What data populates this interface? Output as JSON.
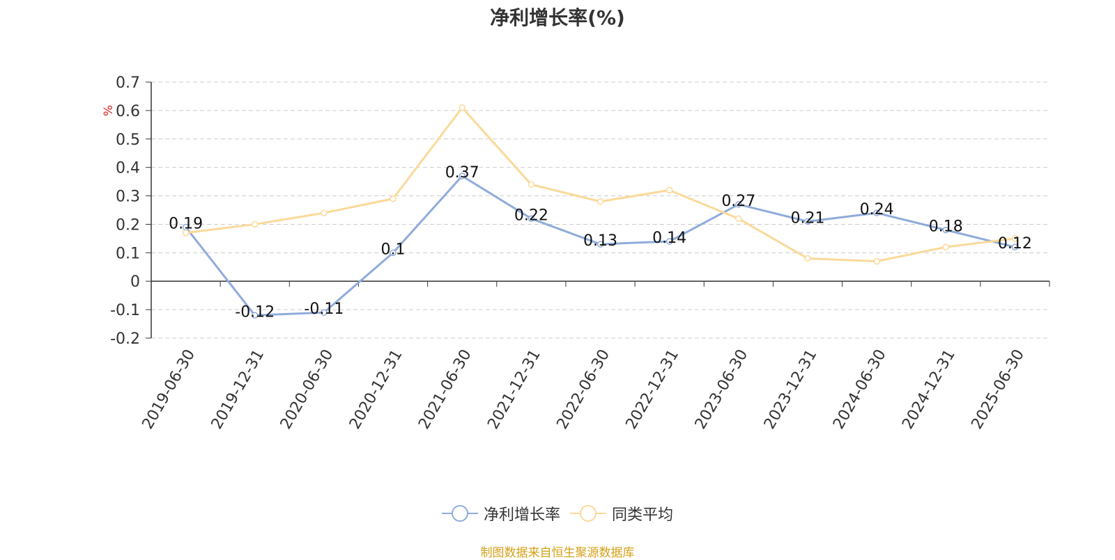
{
  "chart_data": {
    "type": "line",
    "title": "净利增长率(%)",
    "ylabel": "%",
    "x": [
      "2019-06-30",
      "2019-12-31",
      "2020-06-30",
      "2020-12-31",
      "2021-06-30",
      "2021-12-31",
      "2022-06-30",
      "2022-12-31",
      "2023-06-30",
      "2023-12-31",
      "2024-06-30",
      "2024-12-31",
      "2025-06-30"
    ],
    "ylim": [
      -0.2,
      0.7
    ],
    "yticks": [
      "0.7",
      "0.6",
      "0.5",
      "0.4",
      "0.3",
      "0.2",
      "0.1",
      "0",
      "-0.1",
      "-0.2"
    ],
    "grid": true,
    "legend_position": "bottom",
    "series": [
      {
        "name": "净利增长率",
        "color": "#8fabdb",
        "values": [
          0.19,
          -0.12,
          -0.11,
          0.1,
          0.37,
          0.22,
          0.13,
          0.14,
          0.27,
          0.21,
          0.24,
          0.18,
          0.12
        ],
        "labels": [
          "0.19",
          "-0.12",
          "-0.11",
          "0.1",
          "0.37",
          "0.22",
          "0.13",
          "0.14",
          "0.27",
          "0.21",
          "0.24",
          "0.18",
          "0.12"
        ]
      },
      {
        "name": "同类平均",
        "color": "#fad999",
        "values": [
          0.17,
          0.2,
          0.24,
          0.29,
          0.61,
          0.34,
          0.28,
          0.32,
          0.22,
          0.08,
          0.07,
          0.12,
          0.15
        ]
      }
    ]
  },
  "source": "制图数据来自恒生聚源数据库"
}
